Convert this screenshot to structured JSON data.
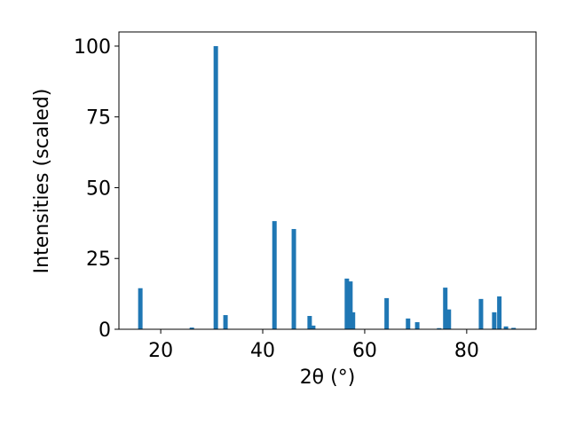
{
  "chart_data": {
    "type": "bar",
    "xlabel": "2θ (°)",
    "ylabel": "Intensities (scaled)",
    "x": [
      16.0,
      26.1,
      30.8,
      32.7,
      42.3,
      46.1,
      49.2,
      49.9,
      56.5,
      57.2,
      57.7,
      64.3,
      68.5,
      70.3,
      74.6,
      75.8,
      76.5,
      82.8,
      85.4,
      86.4,
      87.7,
      89.2
    ],
    "values": [
      14.5,
      0.6,
      100,
      5,
      38.2,
      35.4,
      4.7,
      1.3,
      17.9,
      16.9,
      6,
      11,
      3.8,
      2.5,
      0.4,
      14.7,
      7,
      10.7,
      6,
      11.6,
      1,
      0.5
    ],
    "color": "#1f77b4",
    "xlim": [
      11.8,
      93.6
    ],
    "ylim": [
      0,
      105
    ],
    "xticks": [
      20,
      40,
      60,
      80
    ],
    "yticks": [
      0,
      25,
      50,
      75,
      100
    ]
  }
}
